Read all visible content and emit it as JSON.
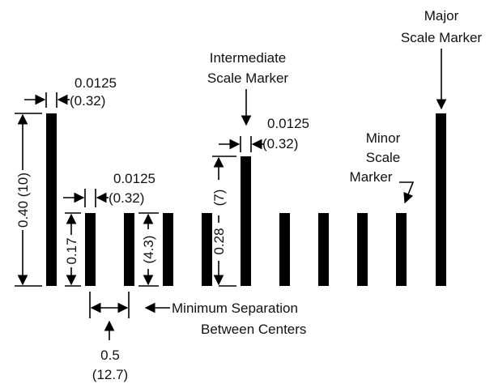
{
  "labels": {
    "major": [
      "Major",
      "Scale Marker"
    ],
    "intermediate": [
      "Intermediate",
      "Scale Marker"
    ],
    "minor": [
      "Minor",
      "Scale",
      "Marker"
    ],
    "width_top": [
      "0.0125",
      "(0.32)"
    ],
    "width_mid": [
      "0.0125",
      "(0.32)"
    ],
    "width_small": [
      "0.0125",
      "(0.32)"
    ],
    "height_major": "0.40  (10)",
    "height_minor": "0.17",
    "height_minor_mm": "(4.3)",
    "height_intermediate": "0.28",
    "height_intermediate_mm": "(7)",
    "separation": [
      "Minimum Separation",
      "Between Centers"
    ],
    "pitch": [
      "0.5",
      "(12.7)"
    ]
  }
}
